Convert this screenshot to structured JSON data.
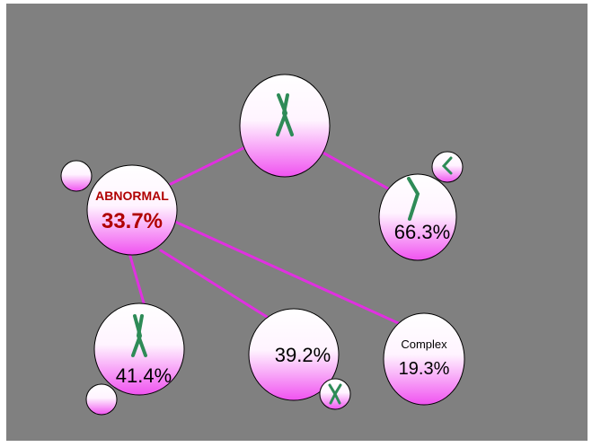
{
  "diagram": {
    "background_color": "#808080",
    "connector_color": "#e030e0",
    "node_gradient": [
      "#ffffff",
      "#f060f0"
    ],
    "chromosome_color": "#2e8b57",
    "abnormal_label_color": "#b00000",
    "nodes": {
      "top": {
        "icon": "chromosome-x-icon"
      },
      "abnormal": {
        "title": "ABNORMAL",
        "value": "33.7%"
      },
      "right": {
        "value": "66.3%",
        "icon": "chromosome-bent-icon"
      },
      "bottom_left": {
        "value": "41.4%",
        "icon": "chromosome-x-icon"
      },
      "bottom_middle": {
        "value": "39.2%",
        "icon": "chromosome-x-small-icon"
      },
      "bottom_right": {
        "title": "Complex",
        "value": "19.3%"
      }
    }
  }
}
